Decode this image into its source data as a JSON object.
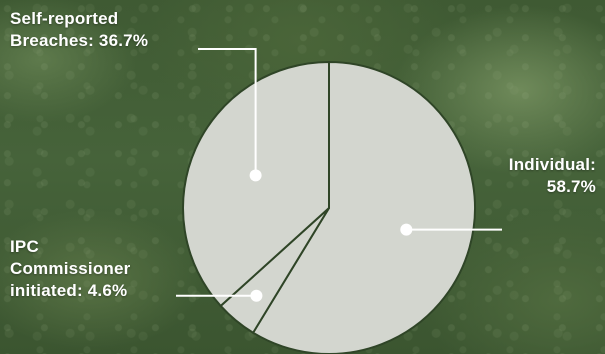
{
  "chart_data": {
    "type": "pie",
    "slices": [
      {
        "name": "Individual",
        "value": 58.7,
        "label_lines": [
          "Individual:",
          "58.7%"
        ]
      },
      {
        "name": "IPC Commissioner initiated",
        "value": 4.6,
        "label_lines": [
          "IPC",
          "Commissioner",
          "initiated: 4.6%"
        ]
      },
      {
        "name": "Self-reported Breaches",
        "value": 36.7,
        "label_lines": [
          "Self-reported",
          "Breaches: 36.7%"
        ]
      }
    ],
    "slice_color": "#d3d6cf",
    "separator_color": "#2f4527",
    "leader_color": "#ffffff"
  }
}
